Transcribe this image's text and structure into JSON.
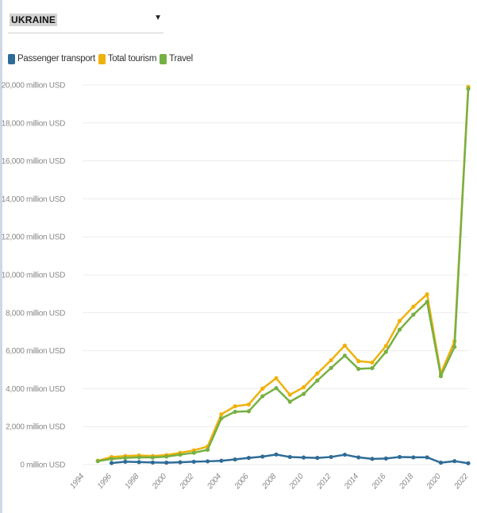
{
  "country_selector": {
    "value": "UKRAINE",
    "caret": "▼"
  },
  "legend": [
    {
      "label": "Passenger transport",
      "color": "#2e6c96"
    },
    {
      "label": "Total tourism",
      "color": "#efb10c"
    },
    {
      "label": "Travel",
      "color": "#77b043"
    }
  ],
  "chart_data": {
    "type": "line",
    "title": "",
    "xlabel": "",
    "ylabel": "",
    "unit_suffix": " million USD",
    "xlim": [
      1994,
      2022
    ],
    "ylim": [
      0,
      20000
    ],
    "x_ticks": [
      "1994",
      "1996",
      "1998",
      "2000",
      "2002",
      "2004",
      "2006",
      "2008",
      "2010",
      "2012",
      "2014",
      "2016",
      "2018",
      "2020",
      "2022"
    ],
    "y_ticks": [
      "0 million USD",
      "2,000 million USD",
      "4,000 million USD",
      "6,000 million USD",
      "8,000 million USD",
      "10,000 million USD",
      "12,000 million USD",
      "14,000 million USD",
      "16,000 million USD",
      "18,000 million USD",
      "20,000 million USD"
    ],
    "grid": "horizontal",
    "legend_position": "top-left",
    "series": [
      {
        "name": "Total tourism",
        "color": "#efb10c",
        "x": [
          1995,
          1996,
          1997,
          1998,
          1999,
          2000,
          2001,
          2002,
          2003,
          2004,
          2005,
          2006,
          2007,
          2008,
          2009,
          2010,
          2011,
          2012,
          2013,
          2014,
          2015,
          2016,
          2017,
          2018,
          2019,
          2020,
          2021,
          2022
        ],
        "y": [
          200,
          400,
          450,
          480,
          450,
          500,
          620,
          750,
          950,
          2650,
          3070,
          3170,
          4000,
          4550,
          3680,
          4070,
          4800,
          5500,
          6270,
          5450,
          5380,
          6250,
          7570,
          8320,
          8970,
          4800,
          6500,
          19900
        ]
      },
      {
        "name": "Travel",
        "color": "#77b043",
        "x": [
          1995,
          1996,
          1997,
          1998,
          1999,
          2000,
          2001,
          2002,
          2003,
          2004,
          2005,
          2006,
          2007,
          2008,
          2009,
          2010,
          2011,
          2012,
          2013,
          2014,
          2015,
          2016,
          2017,
          2018,
          2019,
          2020,
          2021,
          2022
        ],
        "y": [
          180,
          300,
          350,
          380,
          370,
          420,
          520,
          620,
          780,
          2430,
          2780,
          2810,
          3600,
          4030,
          3310,
          3720,
          4430,
          5090,
          5740,
          5040,
          5080,
          5940,
          7110,
          7900,
          8570,
          4660,
          6200,
          19800
        ]
      },
      {
        "name": "Passenger transport",
        "color": "#2e6c96",
        "x": [
          1996,
          1997,
          1998,
          1999,
          2000,
          2001,
          2002,
          2003,
          2004,
          2005,
          2006,
          2007,
          2008,
          2009,
          2010,
          2011,
          2012,
          2013,
          2014,
          2015,
          2016,
          2017,
          2018,
          2019,
          2020,
          2021,
          2022
        ],
        "y": [
          80,
          150,
          130,
          110,
          100,
          120,
          150,
          170,
          200,
          270,
          350,
          420,
          530,
          400,
          370,
          350,
          400,
          520,
          380,
          300,
          320,
          400,
          380,
          380,
          100,
          180,
          70
        ]
      }
    ]
  }
}
